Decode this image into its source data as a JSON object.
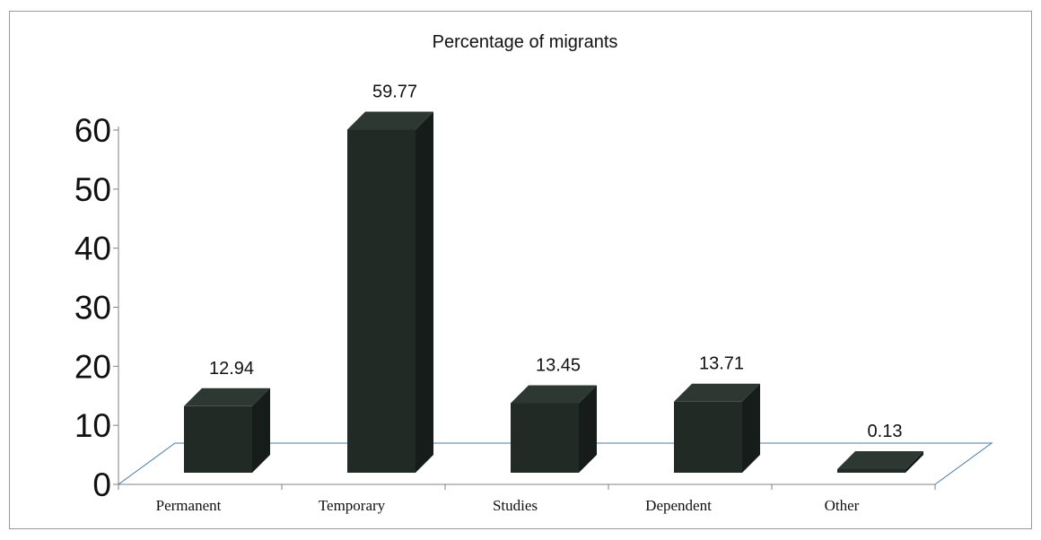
{
  "chart_data": {
    "type": "bar",
    "title": "Percentage of migrants",
    "xlabel": "",
    "ylabel": "",
    "categories": [
      "Permanent",
      "Temporary",
      "Studies",
      "Dependent",
      "Other"
    ],
    "values": [
      12.94,
      59.77,
      13.45,
      13.71,
      0.13
    ],
    "value_labels": [
      "12.94",
      "59.77",
      "13.45",
      "13.71",
      "0.13"
    ],
    "ylim": [
      0,
      60
    ],
    "yticks": [
      0,
      10,
      20,
      30,
      40,
      50,
      60
    ],
    "ytick_labels": [
      "0",
      "10",
      "20",
      "30",
      "40",
      "50",
      "60"
    ],
    "grid": false,
    "legend": "none",
    "style": "3d-bar",
    "colors": {
      "bar_front": "#222a26",
      "bar_top": "#2e3833",
      "bar_side": "#161c19",
      "axis": "#808080",
      "floor_line": "#4a7aa8",
      "border": "#9a9a9a"
    }
  }
}
